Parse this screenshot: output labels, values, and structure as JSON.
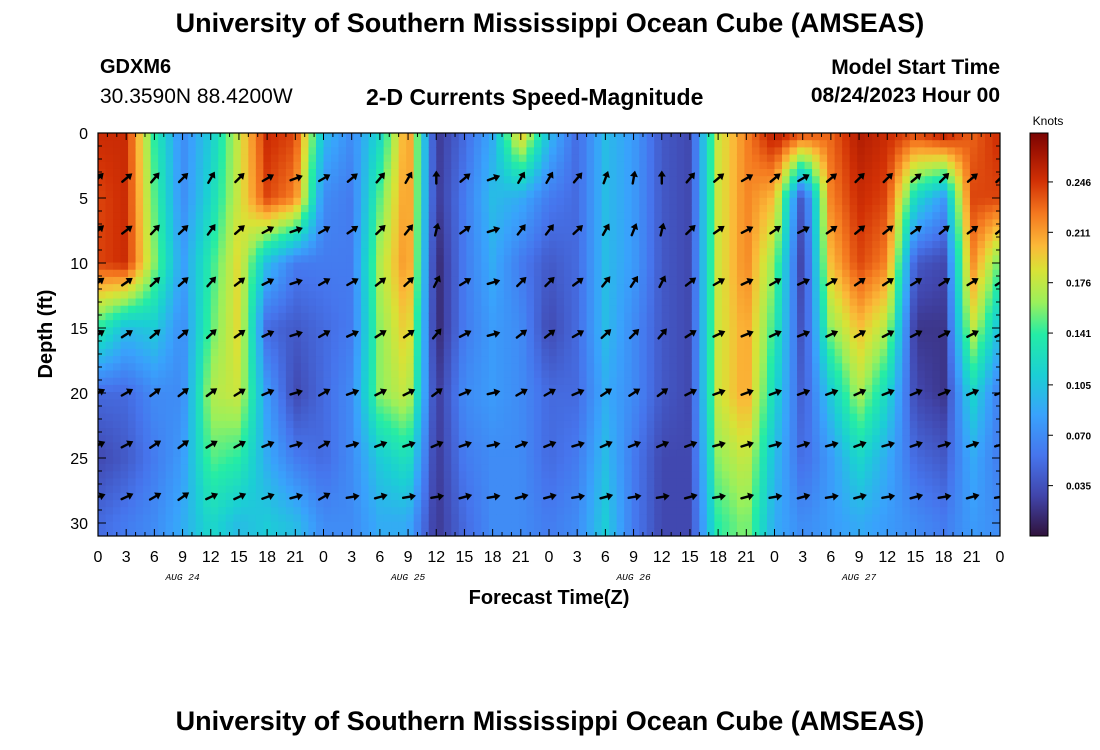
{
  "header": {
    "title": "University of Southern Mississippi Ocean Cube (AMSEAS)",
    "station_id": "GDXM6",
    "station_coords": "30.3590N  88.4200W",
    "plot_title": "2-D Currents Speed-Magnitude",
    "model_start_label": "Model Start Time",
    "model_start_value": "08/24/2023 Hour 00"
  },
  "footer": {
    "title": "University of Southern Mississippi Ocean Cube (AMSEAS)"
  },
  "chart_data": {
    "type": "heatmap",
    "title": "2-D Currents Speed-Magnitude",
    "xlabel": "Forecast Time(Z)",
    "ylabel": "Depth (ft)",
    "x_ticks": [
      "0",
      "3",
      "6",
      "9",
      "12",
      "15",
      "18",
      "21",
      "0",
      "3",
      "6",
      "9",
      "12",
      "15",
      "18",
      "21",
      "0",
      "3",
      "6",
      "9",
      "12",
      "15",
      "18",
      "21",
      "0",
      "3",
      "6",
      "9",
      "12",
      "15",
      "18",
      "21",
      "0"
    ],
    "day_labels": [
      "AUG 24",
      "AUG 25",
      "AUG 26",
      "AUG 27"
    ],
    "xlim_hours": [
      0,
      96
    ],
    "y_ticks": [
      0,
      5,
      10,
      15,
      20,
      25,
      30
    ],
    "ylim_ft": [
      0,
      31
    ],
    "colorbar": {
      "label": "Knots",
      "ticks": [
        0.246,
        0.211,
        0.176,
        0.141,
        0.105,
        0.07,
        0.035
      ],
      "range": [
        0.0,
        0.28
      ]
    },
    "speed_knots_approx": {
      "depths_ft": [
        0,
        5,
        10,
        15,
        20,
        25,
        30
      ],
      "hours": [
        0,
        3,
        6,
        9,
        12,
        15,
        18,
        21,
        24,
        27,
        30,
        33,
        36,
        39,
        42,
        45,
        48,
        51,
        54,
        57,
        60,
        63,
        66,
        69,
        72,
        75,
        78,
        81,
        84,
        87,
        90,
        93,
        96
      ],
      "rows": [
        [
          0.25,
          0.25,
          0.14,
          0.07,
          0.11,
          0.18,
          0.25,
          0.24,
          0.1,
          0.07,
          0.12,
          0.22,
          0.02,
          0.05,
          0.09,
          0.2,
          0.1,
          0.05,
          0.1,
          0.08,
          0.04,
          0.03,
          0.18,
          0.22,
          0.26,
          0.24,
          0.23,
          0.26,
          0.25,
          0.24,
          0.26,
          0.23,
          0.25
        ],
        [
          0.24,
          0.25,
          0.15,
          0.07,
          0.12,
          0.18,
          0.24,
          0.22,
          0.07,
          0.06,
          0.15,
          0.22,
          0.02,
          0.06,
          0.1,
          0.09,
          0.06,
          0.05,
          0.1,
          0.08,
          0.04,
          0.03,
          0.18,
          0.22,
          0.2,
          0.03,
          0.22,
          0.25,
          0.24,
          0.12,
          0.08,
          0.24,
          0.24
        ],
        [
          0.24,
          0.25,
          0.16,
          0.08,
          0.14,
          0.19,
          0.1,
          0.06,
          0.06,
          0.06,
          0.17,
          0.22,
          0.01,
          0.06,
          0.09,
          0.06,
          0.04,
          0.05,
          0.1,
          0.08,
          0.04,
          0.03,
          0.18,
          0.22,
          0.16,
          0.02,
          0.2,
          0.24,
          0.22,
          0.04,
          0.03,
          0.22,
          0.15
        ],
        [
          0.14,
          0.1,
          0.11,
          0.07,
          0.15,
          0.19,
          0.05,
          0.04,
          0.05,
          0.06,
          0.16,
          0.2,
          0.01,
          0.06,
          0.08,
          0.07,
          0.03,
          0.05,
          0.1,
          0.07,
          0.04,
          0.03,
          0.18,
          0.21,
          0.14,
          0.03,
          0.16,
          0.2,
          0.17,
          0.02,
          0.02,
          0.18,
          0.1
        ],
        [
          0.05,
          0.05,
          0.07,
          0.07,
          0.17,
          0.18,
          0.08,
          0.03,
          0.05,
          0.07,
          0.16,
          0.18,
          0.02,
          0.07,
          0.08,
          0.07,
          0.05,
          0.05,
          0.09,
          0.07,
          0.04,
          0.03,
          0.18,
          0.21,
          0.12,
          0.04,
          0.11,
          0.17,
          0.12,
          0.03,
          0.02,
          0.12,
          0.06
        ],
        [
          0.03,
          0.04,
          0.06,
          0.08,
          0.15,
          0.14,
          0.09,
          0.06,
          0.05,
          0.07,
          0.11,
          0.13,
          0.02,
          0.06,
          0.07,
          0.07,
          0.05,
          0.06,
          0.1,
          0.06,
          0.03,
          0.03,
          0.16,
          0.18,
          0.1,
          0.05,
          0.08,
          0.12,
          0.09,
          0.05,
          0.04,
          0.09,
          0.06
        ],
        [
          0.05,
          0.06,
          0.07,
          0.09,
          0.12,
          0.1,
          0.11,
          0.1,
          0.07,
          0.07,
          0.09,
          0.09,
          0.02,
          0.05,
          0.07,
          0.07,
          0.06,
          0.07,
          0.11,
          0.06,
          0.03,
          0.03,
          0.14,
          0.16,
          0.09,
          0.07,
          0.08,
          0.09,
          0.08,
          0.07,
          0.06,
          0.08,
          0.07
        ]
      ]
    },
    "arrow_rows_ft": [
      3.5,
      7.5,
      11.5,
      15.5,
      20.0,
      24.0,
      28.0
    ],
    "arrow_hours": [
      0,
      3,
      6,
      9,
      12,
      15,
      18,
      21,
      24,
      27,
      30,
      33,
      36,
      39,
      42,
      45,
      48,
      51,
      54,
      57,
      60,
      63,
      66,
      69,
      72,
      75,
      78,
      81,
      84,
      87,
      90,
      93,
      96
    ],
    "arrow_direction_deg": {
      "surface": [
        -45,
        -40,
        -50,
        -45,
        -60,
        -45,
        -30,
        -20,
        -30,
        -40,
        -50,
        -60,
        -90,
        -40,
        -20,
        -60,
        -60,
        -50,
        -70,
        -80,
        -90,
        -50,
        -40,
        -30,
        -40,
        -30,
        -40,
        -45,
        -45,
        -40,
        -45,
        -40,
        -45
      ],
      "deep": [
        -20,
        -25,
        -30,
        -35,
        -25,
        -25,
        -20,
        -15,
        -30,
        -10,
        -15,
        -10,
        -10,
        -15,
        -10,
        -15,
        -15,
        -10,
        -15,
        -10,
        -10,
        -15,
        -10,
        -15,
        -10,
        -15,
        -10,
        -15,
        -10,
        -15,
        -10,
        -15,
        -10
      ]
    }
  }
}
